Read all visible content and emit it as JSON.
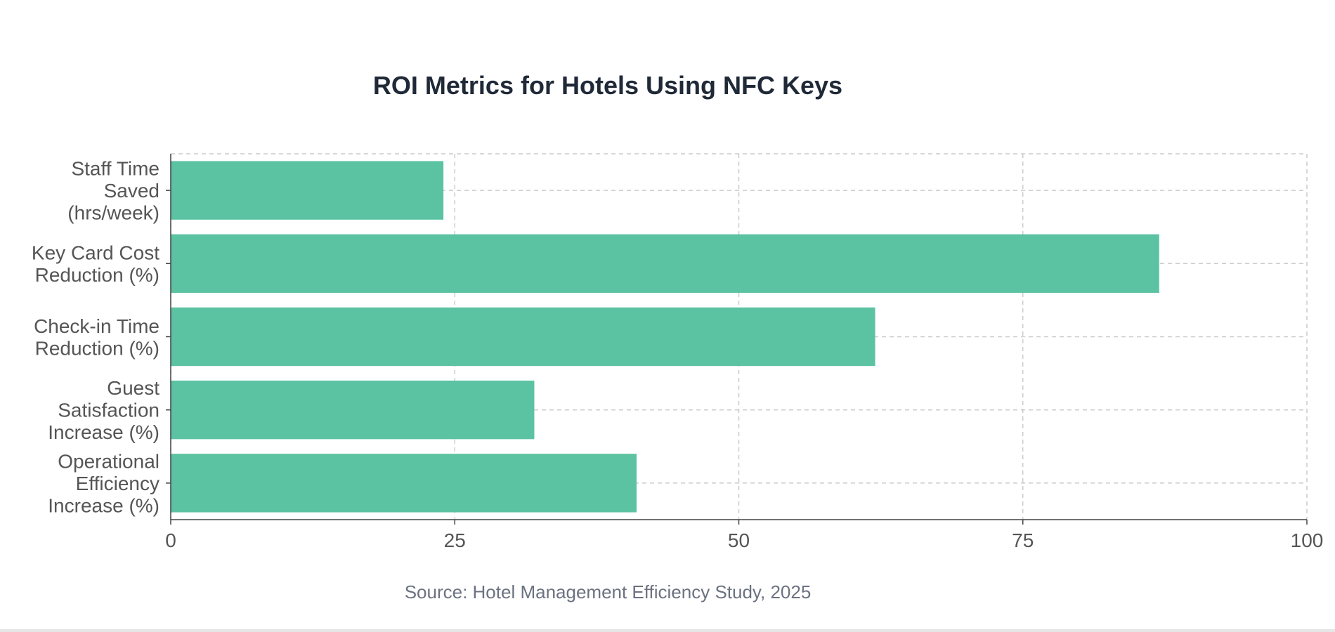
{
  "chart_data": {
    "type": "bar",
    "orientation": "horizontal",
    "title": "ROI Metrics for Hotels Using NFC Keys",
    "categories": [
      "Staff Time Saved (hrs/week)",
      "Key Card Cost Reduction (%)",
      "Check-in Time Reduction (%)",
      "Guest Satisfaction Increase (%)",
      "Operational Efficiency Increase (%)"
    ],
    "category_label_lines": [
      [
        "Staff Time",
        "Saved",
        "(hrs/week)"
      ],
      [
        "Key Card Cost",
        "Reduction (%)"
      ],
      [
        "Check-in Time",
        "Reduction (%)"
      ],
      [
        "Guest",
        "Satisfaction",
        "Increase (%)"
      ],
      [
        "Operational",
        "Efficiency",
        "Increase (%)"
      ]
    ],
    "values": [
      24,
      87,
      62,
      32,
      41
    ],
    "xlim": [
      0,
      100
    ],
    "x_ticks": [
      0,
      25,
      50,
      75,
      100
    ],
    "grid": true,
    "bar_color": "#5bc2a2",
    "xlabel": "",
    "ylabel": "",
    "source": "Source: Hotel Management Efficiency Study, 2025"
  }
}
